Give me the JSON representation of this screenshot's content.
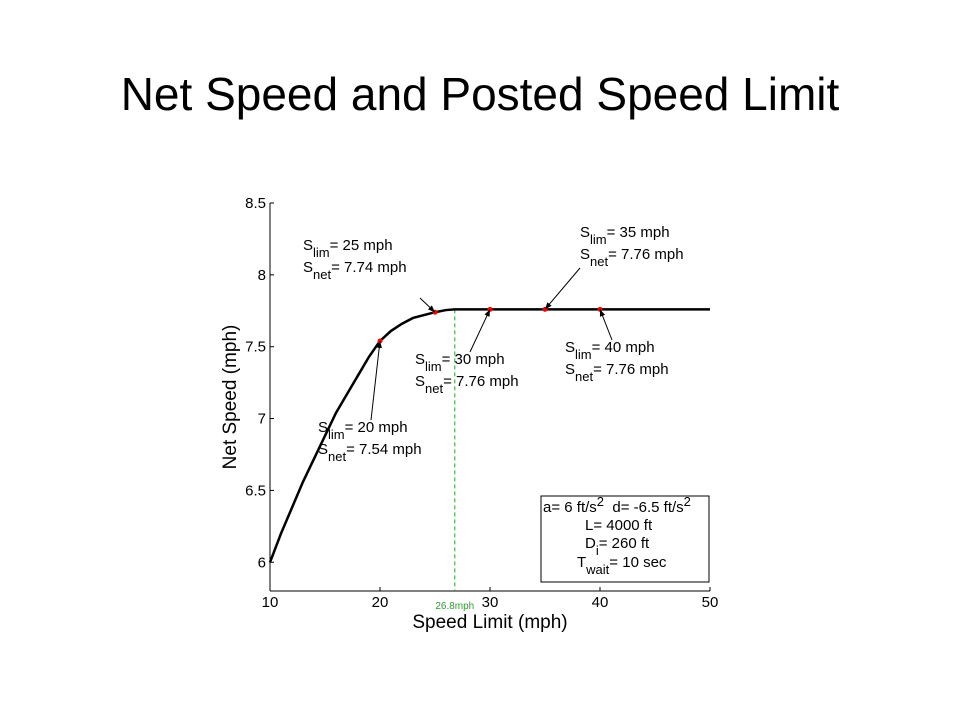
{
  "chart_data": {
    "type": "line",
    "title": "Net Speed and Posted Speed Limit",
    "xlabel": "Speed Limit (mph)",
    "ylabel": "Net Speed (mph)",
    "xlim": [
      10,
      50
    ],
    "ylim": [
      5.8,
      8.5
    ],
    "xticks": [
      10,
      20,
      30,
      40,
      50
    ],
    "yticks": [
      6,
      6.5,
      7,
      7.5,
      8,
      8.5
    ],
    "series": [
      {
        "color": "#000000",
        "x": [
          10,
          11,
          12,
          13,
          14,
          15,
          16,
          17,
          18,
          19,
          20,
          21,
          22,
          23,
          24,
          25,
          26,
          26.8,
          50
        ],
        "values": [
          6.0,
          6.2,
          6.38,
          6.56,
          6.72,
          6.88,
          7.04,
          7.17,
          7.3,
          7.43,
          7.54,
          7.61,
          7.66,
          7.7,
          7.72,
          7.74,
          7.755,
          7.76,
          7.76
        ]
      },
      {
        "color": "#ff0000",
        "x": [
          20,
          25,
          30,
          35,
          40
        ],
        "values": [
          7.54,
          7.74,
          7.76,
          7.76,
          7.76
        ]
      }
    ],
    "vline": {
      "x": 26.8,
      "label": "26.8mph",
      "color": "#2ca02c"
    },
    "annotations": [
      {
        "lines": [
          [
            {
              "text": "S"
            },
            {
              "sub": "lim"
            },
            {
              "text": "= 20 mph"
            }
          ],
          [
            {
              "text": "S"
            },
            {
              "sub": "net"
            },
            {
              "text": "= 7.54 mph"
            }
          ]
        ]
      },
      {
        "lines": [
          [
            {
              "text": "S"
            },
            {
              "sub": "lim"
            },
            {
              "text": "= 25 mph"
            }
          ],
          [
            {
              "text": "S"
            },
            {
              "sub": "net"
            },
            {
              "text": "= 7.74 mph"
            }
          ]
        ]
      },
      {
        "lines": [
          [
            {
              "text": "S"
            },
            {
              "sub": "lim"
            },
            {
              "text": "= 30 mph"
            }
          ],
          [
            {
              "text": "S"
            },
            {
              "sub": "net"
            },
            {
              "text": "= 7.76 mph"
            }
          ]
        ]
      },
      {
        "lines": [
          [
            {
              "text": "S"
            },
            {
              "sub": "lim"
            },
            {
              "text": "= 35 mph"
            }
          ],
          [
            {
              "text": "S"
            },
            {
              "sub": "net"
            },
            {
              "text": "= 7.76 mph"
            }
          ]
        ]
      },
      {
        "lines": [
          [
            {
              "text": "S"
            },
            {
              "sub": "lim"
            },
            {
              "text": "= 40 mph"
            }
          ],
          [
            {
              "text": "S"
            },
            {
              "sub": "net"
            },
            {
              "text": "= 7.76 mph"
            }
          ]
        ]
      }
    ],
    "parameters": [
      [
        {
          "text": "a= 6 ft/s"
        },
        {
          "sup": "2"
        },
        {
          "text": "  d= -6.5 ft/s"
        },
        {
          "sup": "2"
        }
      ],
      [
        {
          "text": "L= 4000 ft"
        }
      ],
      [
        {
          "text": "D"
        },
        {
          "sub": "i"
        },
        {
          "text": "= 260 ft"
        }
      ],
      [
        {
          "text": "T"
        },
        {
          "sub": "wait"
        },
        {
          "text": "= 10 sec"
        }
      ]
    ]
  }
}
